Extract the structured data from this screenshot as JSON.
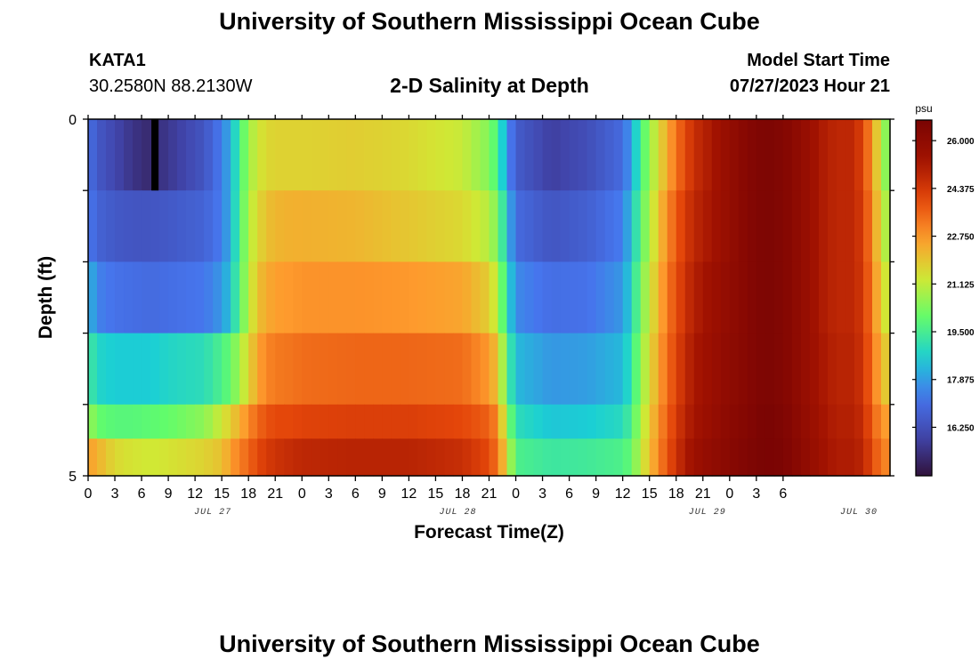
{
  "page": {
    "title_top": "University of Southern Mississippi Ocean Cube",
    "title_bottom": "University of Southern Mississippi Ocean Cube",
    "station": {
      "id": "KATA1",
      "coords": "30.2580N  88.2130W"
    },
    "subtitle": "2-D Salinity at Depth",
    "model_start": {
      "label": "Model Start Time",
      "value": "07/27/2023 Hour 21"
    }
  },
  "colors": {
    "background": "#ffffff",
    "axis": "#000000",
    "colormap_stops": [
      "#30123b",
      "#4145ab",
      "#4675ed",
      "#1bcfd4",
      "#61fc6c",
      "#d1e834",
      "#fe9b2d",
      "#e4460a",
      "#a11201",
      "#7a0403"
    ]
  },
  "chart_data": {
    "type": "heatmap",
    "xlabel": "Forecast Time(Z)",
    "ylabel": "Depth (ft)",
    "ylim": [
      0,
      5
    ],
    "y_ticks": [
      "0",
      "5"
    ],
    "y_band_count": 5,
    "x_hours": [
      0,
      90
    ],
    "x_tick_labels": [
      "0",
      "3",
      "6",
      "9",
      "12",
      "15",
      "18",
      "21",
      "0",
      "3",
      "6",
      "9",
      "12",
      "15",
      "18",
      "21",
      "0",
      "3",
      "6",
      "9",
      "12",
      "15",
      "18",
      "21",
      "0",
      "3",
      "6"
    ],
    "date_labels": [
      {
        "text": "JUL 27",
        "hour": 14
      },
      {
        "text": "JUL 28",
        "hour": 41.5
      },
      {
        "text": "JUL 29",
        "hour": 69.5
      },
      {
        "text": "JUL 30",
        "hour": 86.5
      }
    ],
    "colorbar": {
      "units": "psu",
      "range": [
        14.6,
        26.7
      ],
      "tick_labels": [
        "26.000",
        "24.375",
        "22.750",
        "21.125",
        "19.500",
        "17.875",
        "16.250"
      ],
      "tick_values": [
        26.0,
        24.375,
        22.75,
        21.125,
        19.5,
        17.875,
        16.25
      ]
    },
    "min_marker": {
      "hour": 7.5,
      "depth_band": 0,
      "note": "values below colorbar minimum"
    },
    "time_profiles": {
      "hours": [
        0,
        1,
        3,
        5,
        7,
        9,
        13,
        15,
        16,
        17,
        18,
        19,
        20,
        21,
        23,
        24,
        30,
        36,
        42,
        45,
        46,
        47,
        48,
        52,
        56,
        60,
        61,
        62,
        63,
        64,
        65,
        66,
        67,
        68,
        70,
        72,
        74,
        76,
        78,
        80,
        82,
        84,
        86,
        87,
        88,
        89,
        90
      ],
      "depth_0_to_1ft": [
        17.2,
        16.5,
        16.0,
        15.5,
        15.2,
        15.6,
        16.4,
        17.4,
        18.2,
        19.5,
        20.7,
        21.3,
        21.6,
        21.7,
        21.7,
        21.7,
        21.8,
        21.6,
        21.2,
        20.4,
        19.5,
        17.8,
        16.6,
        15.8,
        16.2,
        17.0,
        18.0,
        19.5,
        20.6,
        21.5,
        22.4,
        23.3,
        24.0,
        24.6,
        25.2,
        25.8,
        26.3,
        26.6,
        26.4,
        25.9,
        25.2,
        24.8,
        24.8,
        24.0,
        22.8,
        21.0,
        20.0
      ],
      "depth_1_to_2ft": [
        17.4,
        16.8,
        16.5,
        16.4,
        16.4,
        16.5,
        16.8,
        17.4,
        18.2,
        19.6,
        20.9,
        21.6,
        22.0,
        22.2,
        22.3,
        22.3,
        22.2,
        21.9,
        21.6,
        21.0,
        20.2,
        18.5,
        17.0,
        16.4,
        16.7,
        17.4,
        18.5,
        19.8,
        20.9,
        21.9,
        22.9,
        23.7,
        24.3,
        24.8,
        25.3,
        25.8,
        26.3,
        26.6,
        26.4,
        25.9,
        25.2,
        24.8,
        24.8,
        24.2,
        23.0,
        21.4,
        20.5
      ],
      "depth_2_to_3ft": [
        18.4,
        17.5,
        17.2,
        17.1,
        17.0,
        17.1,
        17.3,
        17.8,
        18.5,
        19.8,
        21.0,
        22.0,
        22.4,
        22.6,
        22.7,
        22.8,
        22.8,
        22.7,
        22.5,
        21.8,
        20.9,
        19.0,
        17.6,
        17.1,
        17.2,
        17.8,
        18.8,
        20.2,
        21.2,
        22.2,
        23.2,
        23.9,
        24.5,
        25.0,
        25.5,
        25.9,
        26.3,
        26.6,
        26.4,
        25.9,
        25.2,
        24.8,
        24.8,
        24.3,
        23.2,
        21.7,
        21.0
      ],
      "depth_3_to_4ft": [
        19.5,
        18.8,
        18.6,
        18.6,
        18.6,
        18.8,
        19.0,
        19.6,
        20.0,
        20.8,
        21.6,
        22.5,
        23.0,
        23.2,
        23.3,
        23.4,
        23.5,
        23.5,
        23.4,
        22.7,
        21.9,
        19.8,
        18.3,
        17.8,
        17.9,
        18.3,
        19.2,
        20.5,
        21.5,
        22.5,
        23.4,
        24.1,
        24.7,
        25.2,
        25.6,
        26.0,
        26.3,
        26.6,
        26.4,
        25.9,
        25.3,
        24.9,
        24.9,
        24.4,
        23.4,
        22.2,
        21.6
      ],
      "depth_4_to_5ft": [
        20.8,
        20.0,
        19.8,
        19.8,
        19.9,
        20.0,
        20.5,
        21.3,
        21.8,
        22.3,
        22.9,
        23.5,
        23.8,
        24.0,
        24.0,
        24.1,
        24.2,
        24.2,
        24.0,
        23.6,
        22.9,
        20.6,
        19.0,
        18.5,
        18.6,
        18.9,
        19.6,
        20.8,
        21.8,
        22.8,
        23.6,
        24.3,
        24.9,
        25.3,
        25.7,
        26.1,
        26.4,
        26.7,
        26.5,
        26.0,
        25.4,
        25.0,
        25.0,
        24.6,
        23.7,
        22.8,
        22.5
      ],
      "depth_5ft_edge": [
        22.6,
        22.3,
        21.6,
        21.4,
        21.3,
        21.4,
        21.7,
        22.0,
        22.6,
        23.1,
        23.5,
        24.0,
        24.3,
        24.5,
        24.7,
        24.8,
        24.9,
        24.9,
        24.6,
        24.0,
        23.2,
        21.5,
        19.6,
        19.3,
        19.4,
        19.6,
        20.0,
        21.1,
        22.0,
        23.0,
        23.8,
        24.5,
        25.1,
        25.5,
        25.9,
        26.2,
        26.5,
        26.7,
        26.6,
        26.1,
        25.5,
        25.1,
        25.1,
        24.8,
        24.0,
        23.2,
        22.9
      ]
    }
  }
}
